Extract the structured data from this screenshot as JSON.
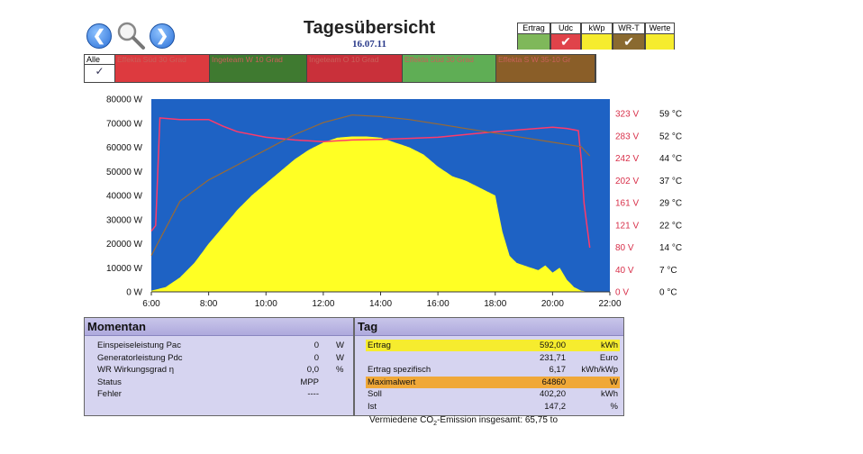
{
  "header": {
    "title": "Tagesübersicht",
    "date": "16.07.11",
    "back_icon": "arrow-left-icon",
    "search_icon": "magnifier-icon",
    "forward_icon": "arrow-right-icon"
  },
  "view_buttons": [
    {
      "label": "Ertrag",
      "color": "#7fb85a",
      "checked": false
    },
    {
      "label": "Udc",
      "color": "#e0434a",
      "checked": true
    },
    {
      "label": "kWp",
      "color": "#f6ec2e",
      "checked": false
    },
    {
      "label": "WR-T",
      "color": "#8a6a30",
      "checked": true
    },
    {
      "label": "Werte",
      "color": "#f6ec2e",
      "checked": false
    }
  ],
  "strings": {
    "all_label": "Alle",
    "items": [
      {
        "label": "Effekta Süd 30 Grad",
        "color": "#dd3a3f"
      },
      {
        "label": "Ingeteam W 10 Grad",
        "color": "#3f7a30"
      },
      {
        "label": "Ingeteam O 10 Grad",
        "color": "#c9303a"
      },
      {
        "label": "Effekta Süd 30 Grad",
        "color": "#5fae55"
      },
      {
        "label": "Effekta S W 35-10 Gr",
        "color": "#8a5e28"
      }
    ]
  },
  "chart_data": {
    "type": "area",
    "x_ticks": [
      "6:00",
      "8:00",
      "10:00",
      "12:00",
      "14:00",
      "16:00",
      "18:00",
      "20:00",
      "22:00"
    ],
    "xlim": [
      6,
      22
    ],
    "y_ticks_power": [
      "0 W",
      "10000 W",
      "20000 W",
      "30000 W",
      "40000 W",
      "50000 W",
      "60000 W",
      "70000 W",
      "80000 W"
    ],
    "y_ticks_voltage": [
      "0 V",
      "40 V",
      "80 V",
      "121 V",
      "161 V",
      "202 V",
      "242 V",
      "283 V",
      "323 V"
    ],
    "y_ticks_temp": [
      "0 °C",
      "7 °C",
      "14 °C",
      "22 °C",
      "29 °C",
      "37 °C",
      "44 °C",
      "52 °C",
      "59 °C"
    ],
    "ylim_power": [
      0,
      80000
    ],
    "background": "#1e62c4",
    "series": [
      {
        "name": "Pac",
        "color": "#ffff24",
        "x": [
          6.0,
          6.5,
          7.0,
          7.5,
          8.0,
          8.5,
          9.0,
          9.5,
          10.0,
          10.5,
          11.0,
          11.5,
          12.0,
          12.5,
          13.0,
          13.5,
          14.0,
          14.5,
          15.0,
          15.5,
          16.0,
          16.5,
          17.0,
          17.5,
          18.0,
          18.25,
          18.5,
          18.75,
          19.0,
          19.25,
          19.5,
          19.75,
          20.0,
          20.25,
          20.5,
          20.75,
          21.0,
          21.25
        ],
        "y": [
          500,
          2000,
          6000,
          12000,
          20000,
          27000,
          34000,
          40000,
          45000,
          50000,
          55000,
          59000,
          62000,
          64000,
          64500,
          64500,
          64000,
          62000,
          60000,
          57000,
          52000,
          48000,
          46000,
          43000,
          40000,
          25000,
          15000,
          12000,
          11000,
          10000,
          9000,
          11000,
          8000,
          10000,
          5000,
          2000,
          500,
          0
        ]
      },
      {
        "name": "Udc",
        "color": "#ff3a6a",
        "x": [
          6.0,
          6.15,
          6.3,
          7.0,
          8.0,
          8.5,
          9.0,
          10.0,
          11.0,
          12.0,
          13.0,
          14.0,
          15.0,
          16.0,
          17.0,
          18.0,
          19.0,
          20.0,
          20.5,
          20.9,
          21.0,
          21.1,
          21.3
        ],
        "y": [
          110,
          120,
          315,
          312,
          312,
          300,
          290,
          280,
          275,
          272,
          275,
          276,
          278,
          280,
          285,
          290,
          294,
          298,
          296,
          292,
          240,
          160,
          80
        ]
      },
      {
        "name": "WR-T",
        "color": "#9a6a34",
        "x": [
          6.0,
          7.0,
          8.0,
          9.0,
          10.0,
          11.0,
          12.0,
          13.0,
          14.0,
          15.0,
          16.0,
          17.0,
          18.0,
          19.0,
          20.0,
          21.0,
          21.3
        ],
        "y": [
          12,
          30,
          37,
          42,
          47,
          52,
          56,
          58.5,
          58,
          57,
          55.5,
          54,
          52.5,
          51,
          49.5,
          48,
          45
        ]
      }
    ]
  },
  "momentan": {
    "title": "Momentan",
    "rows": [
      {
        "label": "Einspeiseleistung Pac",
        "value": "0",
        "unit": "W"
      },
      {
        "label": "Generatorleistung Pdc",
        "value": "0",
        "unit": "W"
      },
      {
        "label": "WR Wirkungsgrad η",
        "value": "0,0",
        "unit": "%"
      },
      {
        "label": "Status",
        "value": "MPP",
        "unit": ""
      },
      {
        "label": "Fehler",
        "value": "----",
        "unit": ""
      }
    ]
  },
  "tag": {
    "title": "Tag",
    "rows": [
      {
        "label": "Ertrag",
        "value": "592,00",
        "unit": "kWh",
        "highlight": "#f6ec2e"
      },
      {
        "label": "",
        "value": "231,71",
        "unit": "Euro",
        "highlight": ""
      },
      {
        "label": "Ertrag spezifisch",
        "value": "6,17",
        "unit": "kWh/kWp",
        "highlight": ""
      },
      {
        "label": "Maximalwert",
        "value": "64860",
        "unit": "W",
        "highlight": "#f0a838"
      },
      {
        "label": "Soll",
        "value": "402,20",
        "unit": "kWh",
        "highlight": ""
      },
      {
        "label": "Ist",
        "value": "147,2",
        "unit": "%",
        "highlight": ""
      }
    ],
    "emission_prefix": "Vermiedene CO",
    "emission_sub": "2",
    "emission_suffix": "-Emission insgesamt: 65,75 to"
  }
}
